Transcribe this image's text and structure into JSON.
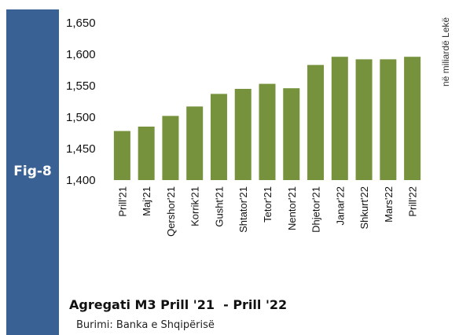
{
  "figure": {
    "label": "Fig-8",
    "title": "Agregati M3 Prill '21  - Prill '22",
    "source": "Burimi: Banka e Shqipërisë",
    "unit": "në miliardë Lekë",
    "accent_color": "#3a6194",
    "bar_color": "#76923c"
  },
  "chart_data": {
    "type": "bar",
    "title": "Agregati M3 Prill '21  - Prill '22",
    "ylabel": "në miliardë Lekë",
    "xlabel": "",
    "categories": [
      "Prill'21",
      "Maj'21",
      "Qershor'21",
      "Korrik'21",
      "Gusht'21",
      "Shtator'21",
      "Tetor'21",
      "Nentor'21",
      "Dhjetor'21",
      "Janar'22",
      "Shkurt'22",
      "Mars'22",
      "Prill'22"
    ],
    "values": [
      1478,
      1485,
      1502,
      1517,
      1537,
      1545,
      1553,
      1546,
      1583,
      1596,
      1592,
      1592,
      1596
    ],
    "ylim": [
      1400,
      1650
    ],
    "yticks": [
      1400,
      1450,
      1500,
      1550,
      1600,
      1650
    ],
    "ytick_labels": [
      "1,400",
      "1,450",
      "1,500",
      "1,550",
      "1,600",
      "1,650"
    ],
    "grid": false,
    "legend": "none"
  }
}
